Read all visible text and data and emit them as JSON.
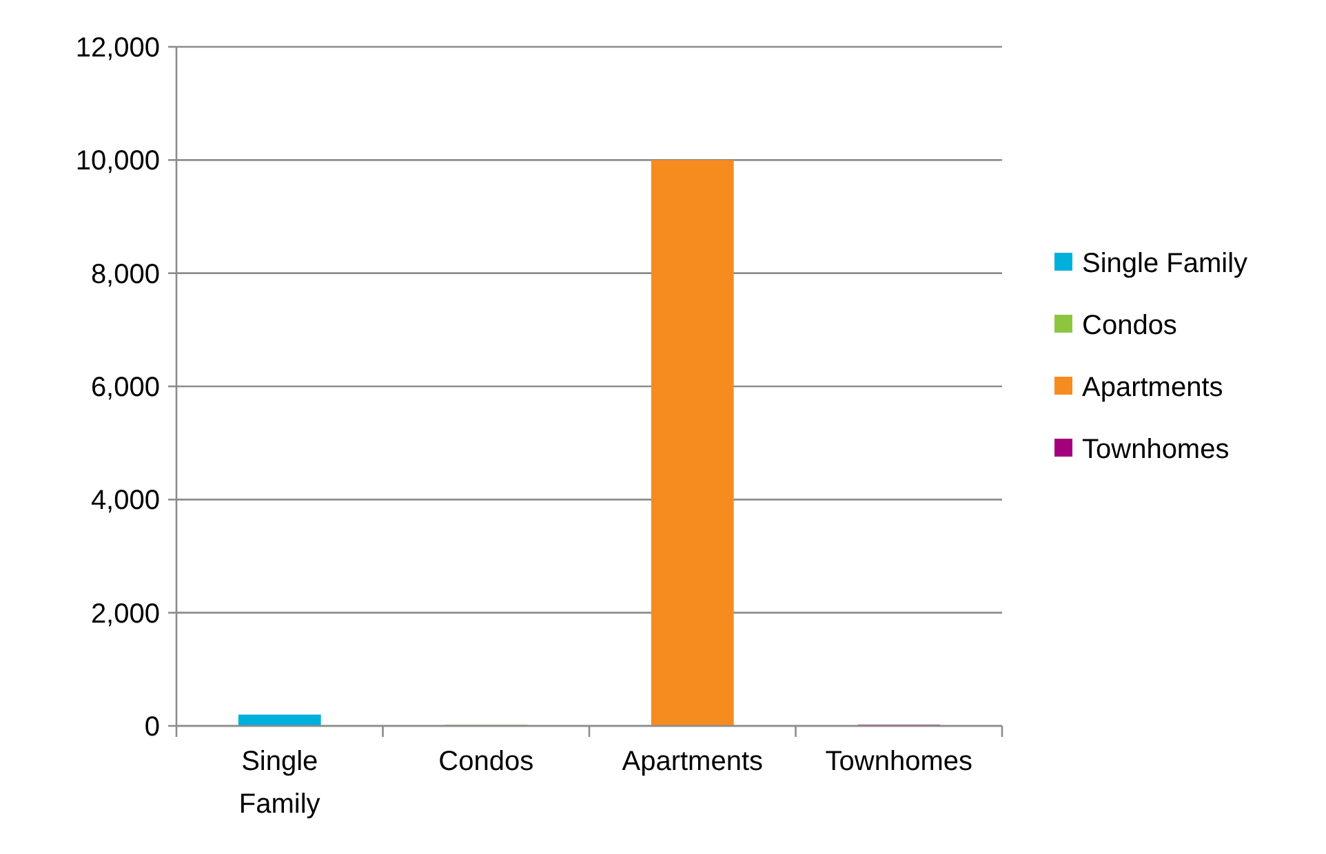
{
  "chart_data": {
    "type": "bar",
    "categories": [
      "Single Family",
      "Condos",
      "Apartments",
      "Townhomes"
    ],
    "series": [
      {
        "name": "Single Family",
        "color": "#00b0dc",
        "values": [
          200,
          null,
          null,
          null
        ]
      },
      {
        "name": "Condos",
        "color": "#8cc63f",
        "values": [
          null,
          20,
          null,
          null
        ]
      },
      {
        "name": "Apartments",
        "color": "#f68b1f",
        "values": [
          null,
          null,
          10000,
          null
        ]
      },
      {
        "name": "Townhomes",
        "color": "#a3007d",
        "values": [
          null,
          null,
          null,
          20
        ]
      }
    ],
    "ylim": [
      0,
      12000
    ],
    "yticks": [
      {
        "value": 0,
        "label": "0"
      },
      {
        "value": 2000,
        "label": "2,000"
      },
      {
        "value": 4000,
        "label": "4,000"
      },
      {
        "value": 6000,
        "label": "6,000"
      },
      {
        "value": 8000,
        "label": "8,000"
      },
      {
        "value": 10000,
        "label": "10,000"
      },
      {
        "value": 12000,
        "label": "12,000"
      }
    ],
    "grid": "y",
    "legend": "right"
  }
}
